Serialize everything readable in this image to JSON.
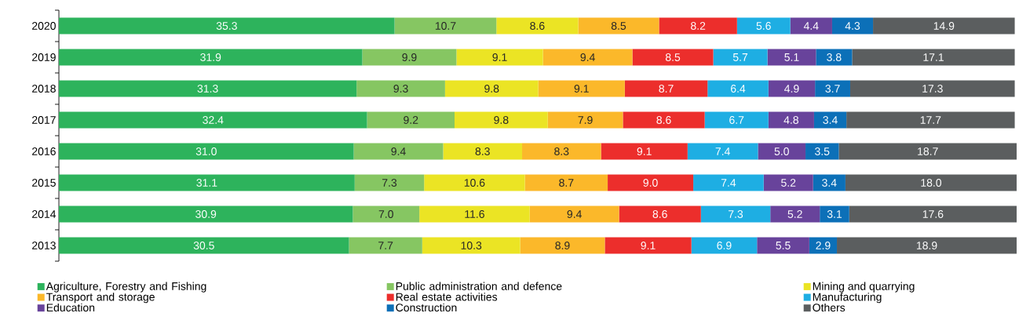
{
  "chart_data": {
    "type": "bar",
    "orientation": "horizontal",
    "stacked": true,
    "legend": "bottom",
    "tick_labels": "y",
    "categories": [
      "2020",
      "2019",
      "2018",
      "2017",
      "2016",
      "2015",
      "2014",
      "2013"
    ],
    "xlim": [
      0,
      100.7
    ],
    "series": [
      {
        "name": "Agriculture, Forestry and Fishing",
        "color": "#2db35c",
        "values": [
          35.3,
          31.9,
          31.3,
          32.4,
          31.0,
          31.1,
          30.9,
          30.5
        ],
        "value_labels": [
          "35.3",
          "31.9",
          "31.3",
          "32.4",
          "31.0",
          "31.1",
          "30.9",
          "30.5"
        ]
      },
      {
        "name": "Public administration and defence",
        "color": "#86c662",
        "values": [
          10.7,
          9.9,
          9.3,
          9.2,
          9.4,
          7.3,
          7.0,
          7.7
        ],
        "value_labels": [
          "10.7",
          "9.9",
          "9.3",
          "9.2",
          "9.4",
          "7.3",
          "7.0",
          "7.7"
        ]
      },
      {
        "name": "Mining and quarrying",
        "color": "#ebe424",
        "values": [
          8.6,
          9.1,
          9.8,
          9.8,
          8.3,
          10.6,
          11.6,
          10.3
        ],
        "value_labels": [
          "8.6",
          "9.1",
          "9.8",
          "9.8",
          "8.3",
          "10.6",
          "11.6",
          "10.3"
        ]
      },
      {
        "name": "Transport and storage",
        "color": "#fbb82a",
        "values": [
          8.5,
          9.4,
          9.1,
          7.9,
          8.3,
          8.7,
          9.4,
          8.9
        ],
        "value_labels": [
          "8.5",
          "9.4",
          "9.1",
          "7.9",
          "8.3",
          "8.7",
          "9.4",
          "8.9"
        ]
      },
      {
        "name": "Real estate activities",
        "color": "#ec2e2c",
        "values": [
          8.2,
          8.5,
          8.7,
          8.6,
          9.1,
          9.0,
          8.6,
          9.1
        ],
        "value_labels": [
          "8.2",
          "8.5",
          "8.7",
          "8.6",
          "9.1",
          "9.0",
          "8.6",
          "9.1"
        ]
      },
      {
        "name": "Manufacturing",
        "color": "#1eaee3",
        "values": [
          5.6,
          5.7,
          6.4,
          6.7,
          7.4,
          7.4,
          7.3,
          6.9
        ],
        "value_labels": [
          "5.6",
          "5.7",
          "6.4",
          "6.7",
          "7.4",
          "7.4",
          "7.3",
          "6.9"
        ]
      },
      {
        "name": "Education",
        "color": "#68439b",
        "values": [
          4.4,
          5.1,
          4.9,
          4.8,
          5.0,
          5.2,
          5.2,
          5.5
        ],
        "value_labels": [
          "4.4",
          "5.1",
          "4.9",
          "4.8",
          "5.0",
          "5.2",
          "5.2",
          "5.5"
        ]
      },
      {
        "name": "Construction",
        "color": "#0c70b8",
        "values": [
          4.3,
          3.8,
          3.7,
          3.4,
          3.5,
          3.4,
          3.1,
          2.9
        ],
        "value_labels": [
          "4.3",
          "3.8",
          "3.7",
          "3.4",
          "3.5",
          "3.4",
          "3.1",
          "2.9"
        ]
      },
      {
        "name": "Others",
        "color": "#5b5e5f",
        "values": [
          14.9,
          17.1,
          17.3,
          17.7,
          18.7,
          18.0,
          17.6,
          18.9
        ],
        "value_labels": [
          "14.9",
          "17.1",
          "17.3",
          "17.7",
          "18.7",
          "18.0",
          "17.6",
          "18.9"
        ]
      }
    ]
  }
}
